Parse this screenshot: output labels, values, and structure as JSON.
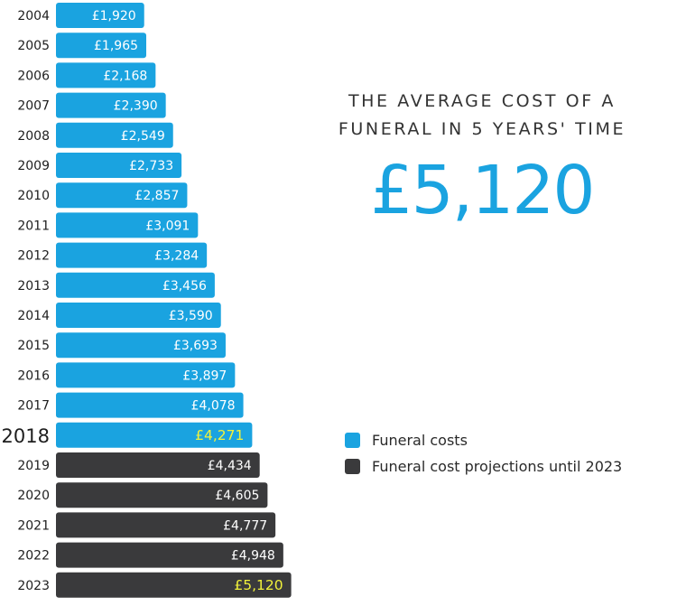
{
  "title": "THE AVERAGE COST OF A FUNERAL IN 5 YEARS' TIME",
  "headline_value": "£5,120",
  "legend": [
    {
      "label": "Funeral costs",
      "color": "#1aa3e0"
    },
    {
      "label": "Funeral cost projections until 2023",
      "color": "#3a3a3c"
    }
  ],
  "colors": {
    "actual": "#1aa3e0",
    "projection": "#3a3a3c",
    "highlight": "#f2f23a",
    "label": "#ffffff"
  },
  "chart_data": {
    "type": "bar",
    "orientation": "horizontal",
    "categories": [
      "2004",
      "2005",
      "2006",
      "2007",
      "2008",
      "2009",
      "2010",
      "2011",
      "2012",
      "2013",
      "2014",
      "2015",
      "2016",
      "2017",
      "2018",
      "2019",
      "2020",
      "2021",
      "2022",
      "2023"
    ],
    "values": [
      1920,
      1965,
      2168,
      2390,
      2549,
      2733,
      2857,
      3091,
      3284,
      3456,
      3590,
      3693,
      3897,
      4078,
      4271,
      4434,
      4605,
      4777,
      4948,
      5120
    ],
    "labels": [
      "£1,920",
      "£1,965",
      "£2,168",
      "£2,390",
      "£2,549",
      "£2,733",
      "£2,857",
      "£3,091",
      "£3,284",
      "£3,456",
      "£3,590",
      "£3,693",
      "£3,897",
      "£4,078",
      "£4,271",
      "£4,434",
      "£4,605",
      "£4,777",
      "£4,948",
      "£5,120"
    ],
    "series_type": [
      "actual",
      "actual",
      "actual",
      "actual",
      "actual",
      "actual",
      "actual",
      "actual",
      "actual",
      "actual",
      "actual",
      "actual",
      "actual",
      "actual",
      "actual",
      "projection",
      "projection",
      "projection",
      "projection",
      "projection"
    ],
    "highlighted_categories": [
      "2018",
      "2023"
    ],
    "emphasized_category": "2018",
    "title": "THE AVERAGE COST OF A FUNERAL IN 5 YEARS' TIME",
    "xlabel": "",
    "ylabel": "",
    "grid": false,
    "legend_position": "right"
  }
}
